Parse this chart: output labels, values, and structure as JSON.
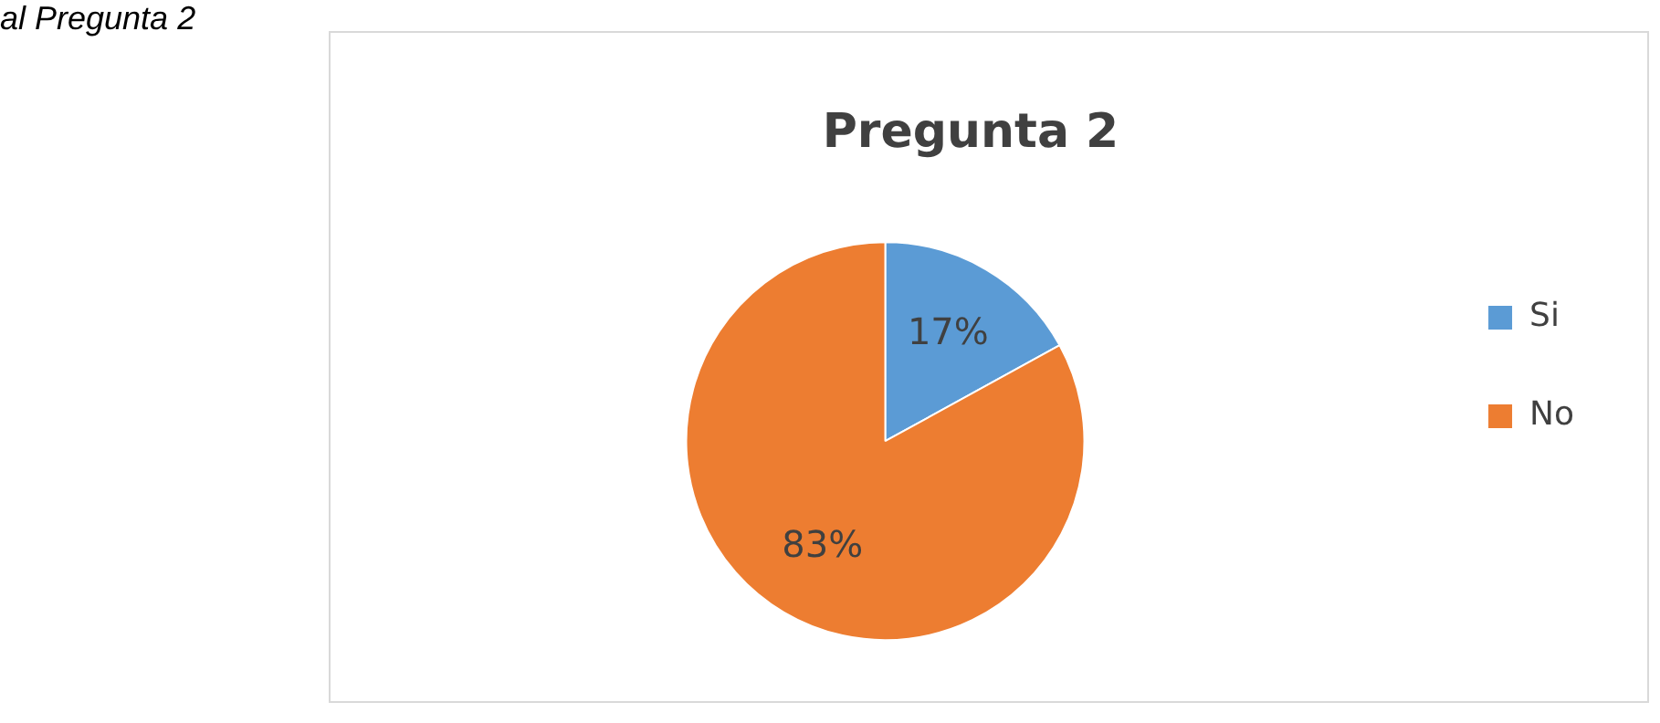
{
  "chart_data": {
    "type": "pie",
    "title": "Pregunta 2",
    "categories": [
      "Si",
      "No"
    ],
    "values": [
      17,
      83
    ],
    "colors": [
      "#5b9bd5",
      "#ed7d31"
    ],
    "value_labels": [
      "17%",
      "83%"
    ],
    "legend": "right",
    "annotations": [
      "al Pregunta 2"
    ]
  }
}
